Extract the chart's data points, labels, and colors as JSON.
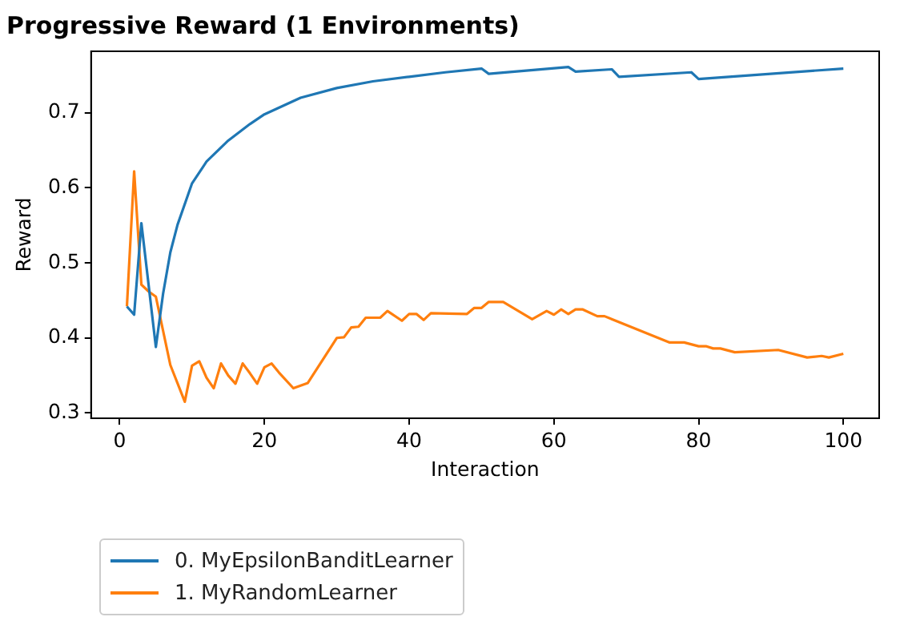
{
  "chart_data": {
    "type": "line",
    "title": "Progressive Reward (1 Environments)",
    "xlabel": "Interaction",
    "ylabel": "Reward",
    "xlim": [
      -3.95,
      104.95
    ],
    "xticks": [
      0,
      20,
      40,
      60,
      80,
      100
    ],
    "ylim": [
      0.293,
      0.782
    ],
    "yticks": [
      {
        "value": 0.3,
        "label": "0.3"
      },
      {
        "value": 0.4,
        "label": "0.4"
      },
      {
        "value": 0.5,
        "label": "0.5"
      },
      {
        "value": 0.6,
        "label": "0.6"
      },
      {
        "value": 0.7,
        "label": "0.7"
      }
    ],
    "grid": false,
    "legend": "bottom left",
    "line_style": "solid",
    "marker": "none",
    "series": [
      {
        "name": "0. MyEpsilonBanditLearner",
        "color": "#1f77b4",
        "x": [
          1,
          2,
          3,
          5,
          6,
          7,
          8,
          10,
          12,
          15,
          18,
          20,
          25,
          30,
          35,
          40,
          45,
          50,
          51,
          62,
          63,
          68,
          69,
          79,
          80,
          100
        ],
        "values": [
          0.442,
          0.431,
          0.553,
          0.388,
          0.459,
          0.514,
          0.551,
          0.606,
          0.635,
          0.663,
          0.685,
          0.698,
          0.72,
          0.733,
          0.742,
          0.748,
          0.754,
          0.759,
          0.752,
          0.761,
          0.755,
          0.758,
          0.748,
          0.754,
          0.745,
          0.759
        ]
      },
      {
        "name": "1. MyRandomLearner",
        "color": "#ff7f0e",
        "x": [
          1,
          2,
          3,
          4,
          5,
          7,
          9,
          10,
          11,
          12,
          13,
          14,
          15,
          16,
          17,
          18,
          19,
          20,
          21,
          22,
          24,
          26,
          30,
          31,
          32,
          33,
          34,
          36,
          37,
          39,
          40,
          41,
          42,
          43,
          48,
          49,
          50,
          51,
          53,
          57,
          59,
          60,
          61,
          62,
          63,
          64,
          66,
          67,
          76,
          78,
          80,
          81,
          82,
          83,
          85,
          91,
          95,
          97,
          98,
          100
        ],
        "values": [
          0.442,
          0.622,
          0.471,
          0.462,
          0.455,
          0.364,
          0.315,
          0.363,
          0.369,
          0.347,
          0.333,
          0.366,
          0.35,
          0.339,
          0.366,
          0.353,
          0.339,
          0.361,
          0.366,
          0.354,
          0.333,
          0.34,
          0.4,
          0.401,
          0.414,
          0.415,
          0.427,
          0.427,
          0.436,
          0.423,
          0.432,
          0.432,
          0.424,
          0.433,
          0.432,
          0.44,
          0.44,
          0.448,
          0.448,
          0.425,
          0.436,
          0.431,
          0.438,
          0.432,
          0.438,
          0.438,
          0.429,
          0.429,
          0.394,
          0.394,
          0.389,
          0.389,
          0.386,
          0.386,
          0.381,
          0.384,
          0.374,
          0.376,
          0.374,
          0.379
        ]
      }
    ]
  }
}
